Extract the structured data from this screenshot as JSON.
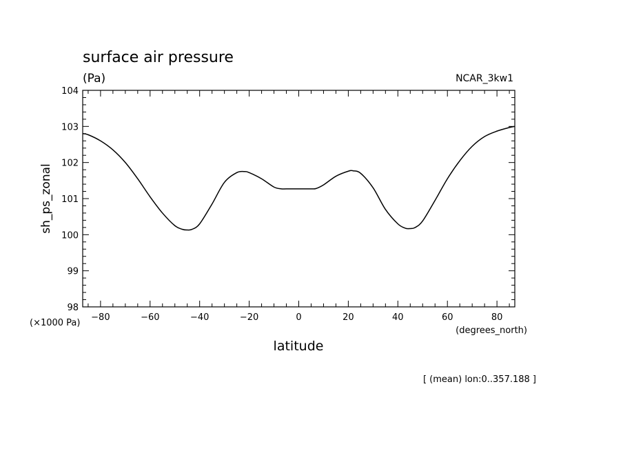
{
  "chart_data": {
    "type": "line",
    "title": "surface air pressure",
    "units_label": "(Pa)",
    "dataset_label": "NCAR_3kw1",
    "ylabel": "sh_ps_zonal",
    "y_scale_label": "(×1000 Pa)",
    "xlabel": "latitude",
    "x_units_label": "(degrees_north)",
    "footnote": "[ (mean) lon:0..357.188 ]",
    "xlim": [
      -87.2,
      87.2
    ],
    "ylim": [
      98,
      104
    ],
    "x_ticks": [
      -80,
      -60,
      -40,
      -20,
      0,
      20,
      40,
      60,
      80
    ],
    "x_tick_labels": [
      "−80",
      "−60",
      "−40",
      "−20",
      "0",
      "20",
      "40",
      "60",
      "80"
    ],
    "y_ticks": [
      98,
      99,
      100,
      101,
      102,
      103,
      104
    ],
    "y_tick_labels": [
      "98",
      "99",
      "100",
      "101",
      "102",
      "103",
      "104"
    ],
    "grid": false,
    "line_color": "#000000",
    "series": [
      {
        "x": [
          -87.2,
          -85,
          -80,
          -75,
          -70,
          -65,
          -60,
          -55,
          -50,
          -47,
          -45,
          -43,
          -40,
          -35,
          -30,
          -25,
          -22,
          -20,
          -15,
          -10,
          -7,
          -5,
          0,
          5,
          7,
          10,
          15,
          20,
          22,
          25,
          30,
          35,
          40,
          43,
          45,
          47,
          50,
          55,
          60,
          65,
          70,
          75,
          80,
          85,
          87.2
        ],
        "y": [
          102.8,
          102.77,
          102.6,
          102.35,
          102.0,
          101.55,
          101.05,
          100.6,
          100.25,
          100.15,
          100.13,
          100.15,
          100.3,
          100.85,
          101.45,
          101.72,
          101.75,
          101.72,
          101.55,
          101.32,
          101.27,
          101.27,
          101.27,
          101.27,
          101.28,
          101.38,
          101.62,
          101.76,
          101.77,
          101.7,
          101.3,
          100.7,
          100.3,
          100.18,
          100.17,
          100.2,
          100.38,
          100.95,
          101.55,
          102.05,
          102.45,
          102.72,
          102.87,
          102.97,
          103.0
        ]
      }
    ]
  }
}
